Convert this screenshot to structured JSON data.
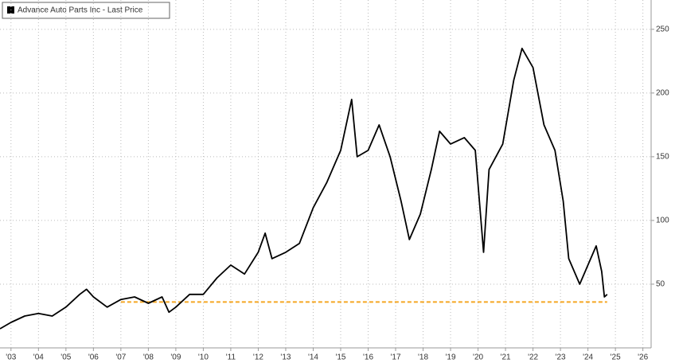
{
  "chart_data": {
    "type": "line",
    "series": [
      {
        "name": "Advance Auto Parts Inc - Last Price",
        "color": "#000000",
        "x": [
          2002.6,
          2003.0,
          2003.5,
          2004.0,
          2004.5,
          2005.0,
          2005.5,
          2005.75,
          2006.0,
          2006.5,
          2007.0,
          2007.5,
          2008.0,
          2008.5,
          2008.75,
          2009.0,
          2009.5,
          2010.0,
          2010.5,
          2011.0,
          2011.5,
          2012.0,
          2012.25,
          2012.5,
          2013.0,
          2013.5,
          2014.0,
          2014.5,
          2015.0,
          2015.4,
          2015.6,
          2016.0,
          2016.4,
          2016.8,
          2017.2,
          2017.5,
          2017.9,
          2018.3,
          2018.6,
          2019.0,
          2019.5,
          2019.9,
          2020.2,
          2020.4,
          2020.9,
          2021.3,
          2021.6,
          2022.0,
          2022.4,
          2022.8,
          2023.1,
          2023.3,
          2023.7,
          2024.0,
          2024.3,
          2024.5,
          2024.6,
          2024.7
        ],
        "values": [
          15,
          20,
          25,
          27,
          25,
          32,
          42,
          46,
          40,
          32,
          38,
          40,
          35,
          40,
          28,
          32,
          42,
          42,
          55,
          65,
          58,
          75,
          90,
          70,
          75,
          82,
          110,
          130,
          155,
          195,
          150,
          155,
          175,
          150,
          115,
          85,
          105,
          140,
          170,
          160,
          165,
          155,
          75,
          140,
          160,
          210,
          235,
          220,
          175,
          155,
          115,
          70,
          50,
          65,
          80,
          60,
          40,
          42
        ]
      }
    ],
    "reference_line": {
      "value": 36,
      "from": 2007,
      "to": 2024.7,
      "color": "#f5a623"
    },
    "xlim": [
      2002.6,
      2026.3
    ],
    "xticks": [
      {
        "value": 2003,
        "label": "'03"
      },
      {
        "value": 2004,
        "label": "'04"
      },
      {
        "value": 2005,
        "label": "'05"
      },
      {
        "value": 2006,
        "label": "'06"
      },
      {
        "value": 2007,
        "label": "'07"
      },
      {
        "value": 2008,
        "label": "'08"
      },
      {
        "value": 2009,
        "label": "'09"
      },
      {
        "value": 2010,
        "label": "'10"
      },
      {
        "value": 2011,
        "label": "'11"
      },
      {
        "value": 2012,
        "label": "'12"
      },
      {
        "value": 2013,
        "label": "'13"
      },
      {
        "value": 2014,
        "label": "'14"
      },
      {
        "value": 2015,
        "label": "'15"
      },
      {
        "value": 2016,
        "label": "'16"
      },
      {
        "value": 2017,
        "label": "'17"
      },
      {
        "value": 2018,
        "label": "'18"
      },
      {
        "value": 2019,
        "label": "'19"
      },
      {
        "value": 2020,
        "label": "'20"
      },
      {
        "value": 2021,
        "label": "'21"
      },
      {
        "value": 2022,
        "label": "'22"
      },
      {
        "value": 2023,
        "label": "'23"
      },
      {
        "value": 2024,
        "label": "'24"
      },
      {
        "value": 2025,
        "label": "'25"
      },
      {
        "value": 2026,
        "label": "'26"
      }
    ],
    "ylim": [
      0,
      273
    ],
    "yticks": [
      50,
      100,
      150,
      200,
      250
    ],
    "grid": true
  }
}
